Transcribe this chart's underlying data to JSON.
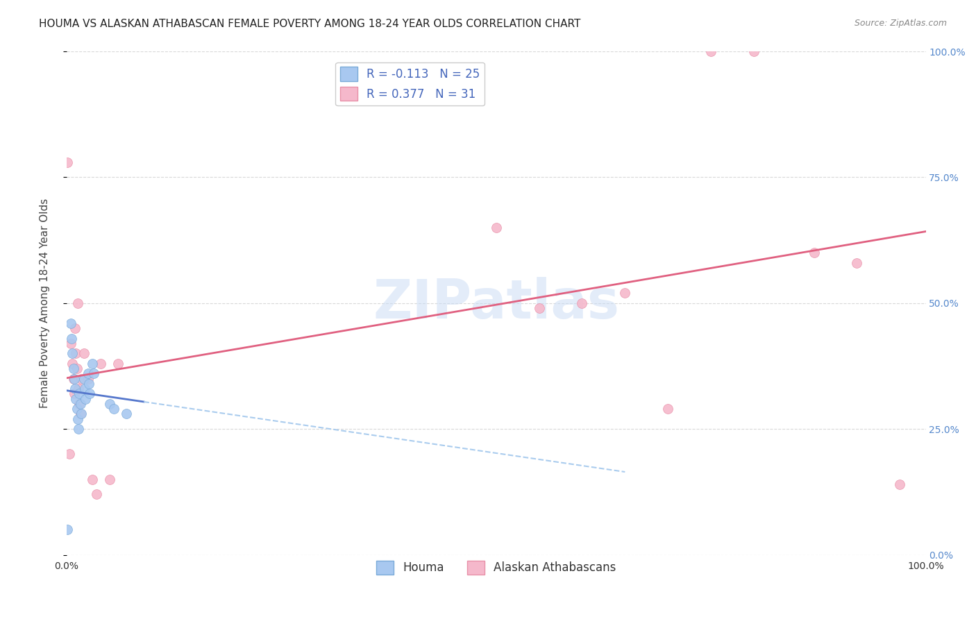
{
  "title": "HOUMA VS ALASKAN ATHABASCAN FEMALE POVERTY AMONG 18-24 YEAR OLDS CORRELATION CHART",
  "source": "Source: ZipAtlas.com",
  "ylabel": "Female Poverty Among 18-24 Year Olds",
  "xlim": [
    0.0,
    1.0
  ],
  "ylim": [
    0.0,
    1.0
  ],
  "right_yticks": [
    0.0,
    0.25,
    0.5,
    0.75,
    1.0
  ],
  "right_yticklabels": [
    "0.0%",
    "25.0%",
    "50.0%",
    "75.0%",
    "100.0%"
  ],
  "houma_color": "#a8c8f0",
  "athabascan_color": "#f5b8cb",
  "houma_edge_color": "#7aaad8",
  "athabascan_edge_color": "#e890a8",
  "houma_line_color": "#5577cc",
  "athabascan_line_color": "#e06080",
  "houma_R": -0.113,
  "houma_N": 25,
  "athabascan_R": 0.377,
  "athabascan_N": 31,
  "houma_x": [
    0.001,
    0.005,
    0.006,
    0.007,
    0.008,
    0.009,
    0.01,
    0.011,
    0.012,
    0.013,
    0.014,
    0.015,
    0.016,
    0.017,
    0.02,
    0.021,
    0.022,
    0.025,
    0.026,
    0.027,
    0.03,
    0.032,
    0.05,
    0.055,
    0.07
  ],
  "houma_y": [
    0.05,
    0.46,
    0.43,
    0.4,
    0.37,
    0.35,
    0.33,
    0.31,
    0.29,
    0.27,
    0.25,
    0.32,
    0.3,
    0.28,
    0.35,
    0.33,
    0.31,
    0.36,
    0.34,
    0.32,
    0.38,
    0.36,
    0.3,
    0.29,
    0.28
  ],
  "athabascan_x": [
    0.001,
    0.003,
    0.005,
    0.007,
    0.008,
    0.009,
    0.01,
    0.011,
    0.012,
    0.013,
    0.014,
    0.015,
    0.016,
    0.017,
    0.02,
    0.025,
    0.03,
    0.035,
    0.04,
    0.05,
    0.06,
    0.5,
    0.55,
    0.6,
    0.65,
    0.7,
    0.75,
    0.8,
    0.87,
    0.92,
    0.97
  ],
  "athabascan_y": [
    0.78,
    0.2,
    0.42,
    0.38,
    0.35,
    0.32,
    0.45,
    0.4,
    0.37,
    0.5,
    0.33,
    0.3,
    0.28,
    0.35,
    0.4,
    0.35,
    0.15,
    0.12,
    0.38,
    0.15,
    0.38,
    0.65,
    0.49,
    0.5,
    0.52,
    0.29,
    1.0,
    1.0,
    0.6,
    0.58,
    0.14
  ],
  "watermark_text": "ZIPatlas",
  "marker_size": 100,
  "background_color": "#ffffff",
  "grid_color": "#d8d8d8",
  "title_fontsize": 11,
  "axis_label_fontsize": 11,
  "tick_fontsize": 10,
  "legend_fontsize": 12
}
